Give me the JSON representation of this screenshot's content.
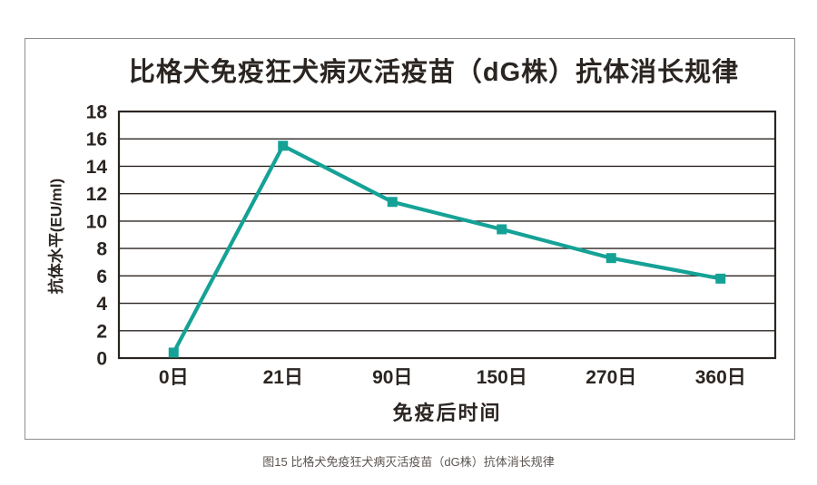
{
  "page": {
    "caption": "图15 比格犬免疫狂犬病灭活疫苗（dG株）抗体消长规律"
  },
  "colors": {
    "line": "#15a296",
    "ink": "#2b2522",
    "frame_border": "#8e8e8e",
    "caption_text": "#5b5450"
  },
  "chart_data": {
    "type": "line",
    "title": "比格犬免疫狂犬病灭活疫苗（dG株）抗体消长规律",
    "xlabel": "免疫后时间",
    "ylabel": "抗体水平(EU/ml)",
    "categories": [
      "0日",
      "21日",
      "90日",
      "150日",
      "270日",
      "360日"
    ],
    "values": [
      0.4,
      15.5,
      11.4,
      9.4,
      7.3,
      5.8
    ],
    "ylim": [
      0,
      18
    ],
    "ytick_step": 2,
    "yticks": [
      0,
      2,
      4,
      6,
      8,
      10,
      12,
      14,
      16,
      18
    ],
    "grid": "horizontal",
    "legend": "none",
    "marker": "square"
  }
}
